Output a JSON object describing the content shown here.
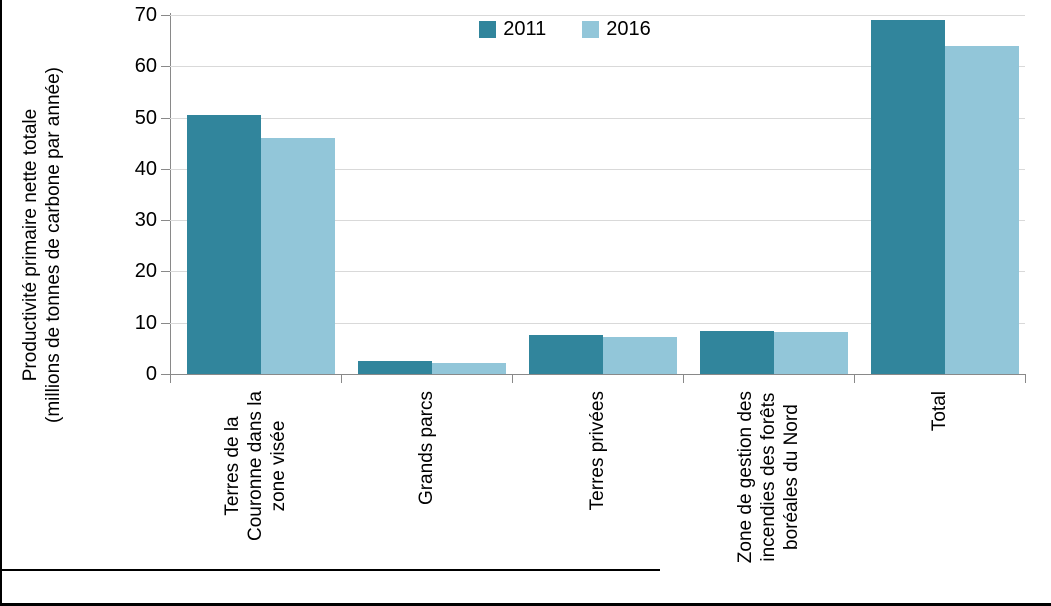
{
  "chart_data": {
    "type": "bar",
    "title": "",
    "ylabel": "Productivité primaire nette totale\n(millions de tonnes de carbone par année)",
    "xlabel": "",
    "categories": [
      "Terres de la\nCouronne dans la\nzone visée",
      "Grands parcs",
      "Terres privées",
      "Zone de gestion des\nincendies des forêts\nboréales du Nord",
      "Total"
    ],
    "series": [
      {
        "name": "2011",
        "color": "#31859C",
        "values": [
          50.5,
          2.5,
          7.6,
          8.3,
          69
        ]
      },
      {
        "name": "2016",
        "color": "#92C6D9",
        "values": [
          46,
          2.2,
          7.2,
          8.2,
          64
        ]
      }
    ],
    "ylim": [
      0,
      70
    ],
    "yticks": [
      0,
      10,
      20,
      30,
      40,
      50,
      60,
      70
    ],
    "grid": true,
    "legend_position": "top-center"
  },
  "colors": {
    "grid": "#d9d9d9",
    "axis": "#898989",
    "frame": "#000000",
    "background": "#ffffff"
  }
}
